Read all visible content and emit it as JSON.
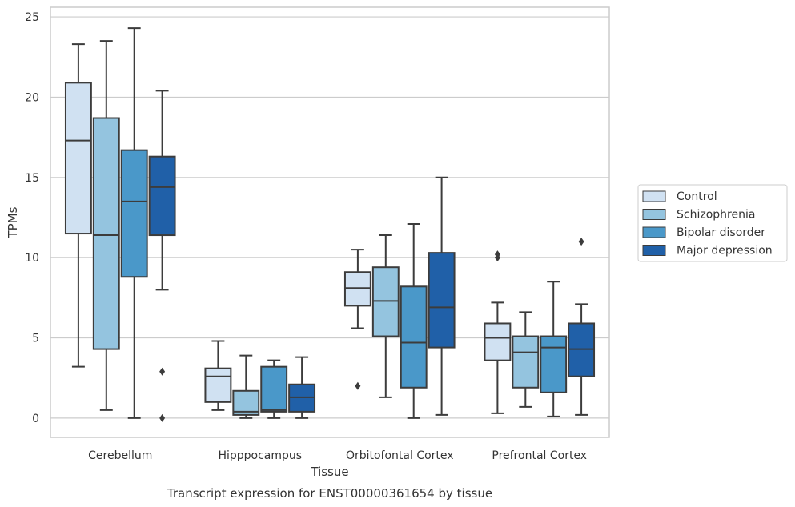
{
  "caption": "Transcript expression for ENST00000361654 by tissue",
  "chart_data": {
    "type": "boxplot",
    "title": "",
    "xlabel": "Tissue",
    "ylabel": "TPMs",
    "ylim": [
      -1.2,
      25.6
    ],
    "yticks": [
      0,
      5,
      10,
      15,
      20,
      25
    ],
    "grid": "horizontal",
    "legend_position": "right",
    "categories": [
      "Cerebellum",
      "Hipppocampus",
      "Orbitofontal Cortex",
      "Prefrontal Cortex"
    ],
    "series": [
      {
        "name": "Control",
        "color": "#d0e1f2",
        "boxes": [
          {
            "whisker_low": 3.2,
            "q1": 11.5,
            "median": 17.3,
            "q3": 20.9,
            "whisker_high": 23.3,
            "outliers": []
          },
          {
            "whisker_low": 0.5,
            "q1": 1.0,
            "median": 2.6,
            "q3": 3.1,
            "whisker_high": 4.8,
            "outliers": []
          },
          {
            "whisker_low": 5.6,
            "q1": 7.0,
            "median": 8.1,
            "q3": 9.1,
            "whisker_high": 10.5,
            "outliers": [
              2.0
            ]
          },
          {
            "whisker_low": 0.3,
            "q1": 3.6,
            "median": 5.0,
            "q3": 5.9,
            "whisker_high": 7.2,
            "outliers": [
              10.2,
              10.0
            ]
          }
        ]
      },
      {
        "name": "Schizophrenia",
        "color": "#94c4df",
        "boxes": [
          {
            "whisker_low": 0.5,
            "q1": 4.3,
            "median": 11.4,
            "q3": 18.7,
            "whisker_high": 23.5,
            "outliers": []
          },
          {
            "whisker_low": 0.0,
            "q1": 0.2,
            "median": 0.4,
            "q3": 1.7,
            "whisker_high": 3.9,
            "outliers": []
          },
          {
            "whisker_low": 1.3,
            "q1": 5.1,
            "median": 7.3,
            "q3": 9.4,
            "whisker_high": 11.4,
            "outliers": []
          },
          {
            "whisker_low": 0.7,
            "q1": 1.9,
            "median": 4.1,
            "q3": 5.1,
            "whisker_high": 6.6,
            "outliers": []
          }
        ]
      },
      {
        "name": "Bipolar disorder",
        "color": "#4a98c9",
        "boxes": [
          {
            "whisker_low": 0.0,
            "q1": 8.8,
            "median": 13.5,
            "q3": 16.7,
            "whisker_high": 24.3,
            "outliers": []
          },
          {
            "whisker_low": 0.0,
            "q1": 0.4,
            "median": 0.5,
            "q3": 3.2,
            "whisker_high": 3.6,
            "outliers": []
          },
          {
            "whisker_low": 0.0,
            "q1": 1.9,
            "median": 4.7,
            "q3": 8.2,
            "whisker_high": 12.1,
            "outliers": []
          },
          {
            "whisker_low": 0.1,
            "q1": 1.6,
            "median": 4.4,
            "q3": 5.1,
            "whisker_high": 8.5,
            "outliers": []
          }
        ]
      },
      {
        "name": "Major depression",
        "color": "#2060a8",
        "boxes": [
          {
            "whisker_low": 8.0,
            "q1": 11.4,
            "median": 14.4,
            "q3": 16.3,
            "whisker_high": 20.4,
            "outliers": [
              2.9,
              0.0
            ]
          },
          {
            "whisker_low": 0.0,
            "q1": 0.4,
            "median": 1.3,
            "q3": 2.1,
            "whisker_high": 3.8,
            "outliers": []
          },
          {
            "whisker_low": 0.2,
            "q1": 4.4,
            "median": 6.9,
            "q3": 10.3,
            "whisker_high": 15.0,
            "outliers": []
          },
          {
            "whisker_low": 0.2,
            "q1": 2.6,
            "median": 4.3,
            "q3": 5.9,
            "whisker_high": 7.1,
            "outliers": [
              11.0
            ]
          }
        ]
      }
    ]
  }
}
